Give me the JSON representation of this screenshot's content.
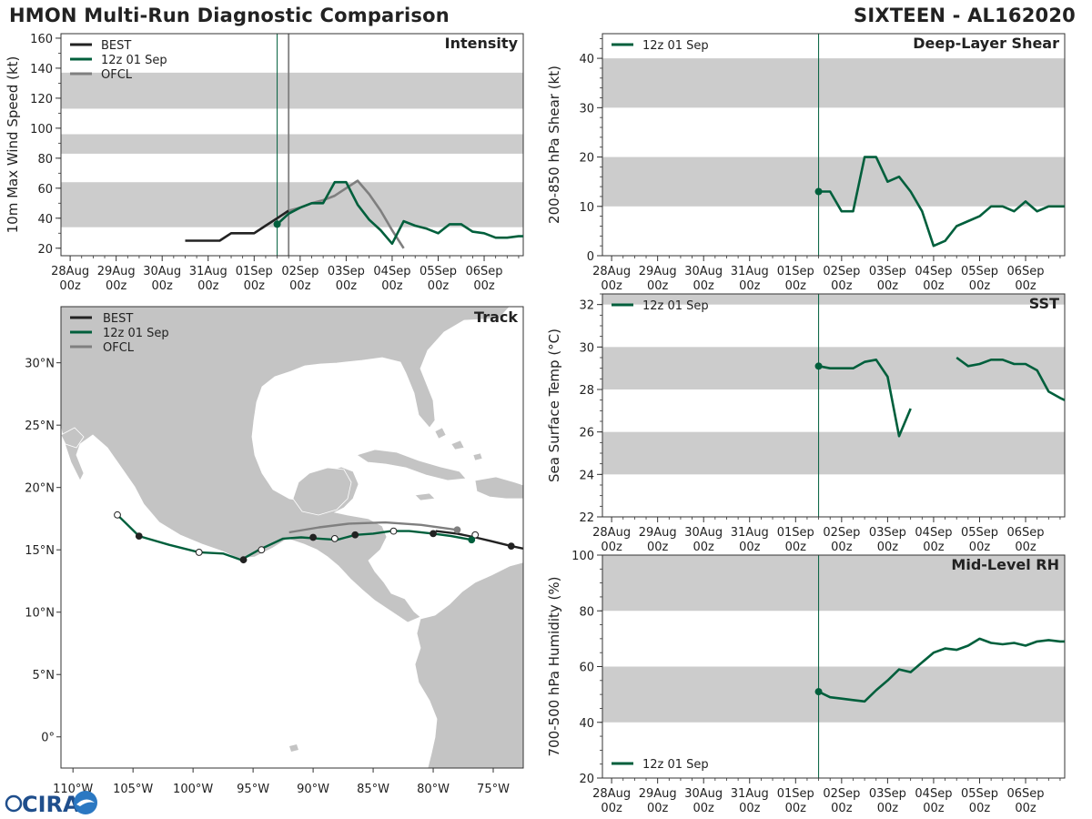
{
  "header": {
    "title": "HMON Multi-Run Diagnostic Comparison",
    "storm": "SIXTEEN - AL162020"
  },
  "logo": {
    "text": "CIRA"
  },
  "colors": {
    "best": "#222222",
    "run": "#005f3c",
    "ofcl": "#7f7f7f",
    "band": "#cccccc",
    "land": "#c4c4c4"
  },
  "time_axis": {
    "ticks": [
      {
        "day": 0,
        "label1": "28Aug",
        "label2": "00z"
      },
      {
        "day": 1,
        "label1": "29Aug",
        "label2": "00z"
      },
      {
        "day": 2,
        "label1": "30Aug",
        "label2": "00z"
      },
      {
        "day": 3,
        "label1": "31Aug",
        "label2": "00z"
      },
      {
        "day": 4,
        "label1": "01Sep",
        "label2": "00z"
      },
      {
        "day": 5,
        "label1": "02Sep",
        "label2": "00z"
      },
      {
        "day": 6,
        "label1": "03Sep",
        "label2": "00z"
      },
      {
        "day": 7,
        "label1": "04Sep",
        "label2": "00z"
      },
      {
        "day": 8,
        "label1": "05Sep",
        "label2": "00z"
      },
      {
        "day": 9,
        "label1": "06Sep",
        "label2": "00z"
      }
    ],
    "xlim": [
      -0.2,
      9.85
    ],
    "init_day": 4.5
  },
  "chart_data": [
    {
      "id": "intensity",
      "type": "line",
      "title": "Intensity",
      "ylabel": "10m Max Wind Speed (kt)",
      "ylim": [
        15,
        163
      ],
      "yticks": [
        20,
        40,
        60,
        80,
        100,
        120,
        140,
        160
      ],
      "minor_step": 10,
      "bands": [
        [
          34,
          64
        ],
        [
          83,
          96
        ],
        [
          113,
          137
        ]
      ],
      "vlines": [
        {
          "x": 4.5,
          "color": "run"
        },
        {
          "x": 4.75,
          "color": "ofcl"
        }
      ],
      "legend": [
        {
          "label": "BEST",
          "color": "best"
        },
        {
          "label": "12z 01 Sep",
          "color": "run"
        },
        {
          "label": "OFCL",
          "color": "ofcl"
        }
      ],
      "series": [
        {
          "name": "BEST",
          "color": "best",
          "x": [
            2.5,
            2.75,
            3.0,
            3.25,
            3.5,
            3.75,
            4.0,
            4.25,
            4.5,
            4.75
          ],
          "y": [
            25,
            25,
            25,
            25,
            30,
            30,
            30,
            35,
            40,
            45
          ]
        },
        {
          "name": "OFCL",
          "color": "ofcl",
          "x": [
            4.75,
            5.0,
            5.25,
            5.5,
            5.75,
            6.0,
            6.25,
            6.5,
            6.75,
            7.0,
            7.25
          ],
          "y": [
            45,
            47,
            50,
            52,
            55,
            60,
            65,
            56,
            45,
            32,
            20
          ]
        },
        {
          "name": "12z 01 Sep",
          "color": "run",
          "start_marker": true,
          "x": [
            4.5,
            4.75,
            5.0,
            5.25,
            5.5,
            5.75,
            6.0,
            6.25,
            6.5,
            6.75,
            7.0,
            7.25,
            7.5,
            7.75,
            8.0,
            8.25,
            8.5,
            8.75,
            9.0,
            9.25,
            9.5,
            9.75,
            9.85
          ],
          "y": [
            36,
            43,
            47,
            50,
            50,
            64,
            64,
            49,
            39,
            32,
            23,
            38,
            35,
            33,
            30,
            36,
            36,
            31,
            30,
            27,
            27,
            28,
            28
          ]
        }
      ]
    },
    {
      "id": "shear",
      "type": "line",
      "title": "Deep-Layer Shear",
      "ylabel": "200-850 hPa Shear (kt)",
      "ylim": [
        0,
        45
      ],
      "yticks": [
        0,
        10,
        20,
        30,
        40
      ],
      "minor_step": 2,
      "bands": [
        [
          10,
          20
        ],
        [
          30,
          40
        ]
      ],
      "vlines": [
        {
          "x": 4.5,
          "color": "run"
        }
      ],
      "legend": [
        {
          "label": "12z 01 Sep",
          "color": "run"
        }
      ],
      "series": [
        {
          "name": "12z 01 Sep",
          "color": "run",
          "start_marker": true,
          "x": [
            4.5,
            4.75,
            5.0,
            5.25,
            5.5,
            5.75,
            6.0,
            6.25,
            6.5,
            6.75,
            7.0,
            7.25,
            7.5,
            7.75,
            8.0,
            8.25,
            8.5,
            8.75,
            9.0,
            9.25,
            9.5,
            9.75,
            9.85
          ],
          "y": [
            13,
            13,
            9,
            9,
            20,
            20,
            15,
            16,
            13,
            9,
            2,
            3,
            6,
            7,
            8,
            10,
            10,
            9,
            11,
            9,
            10,
            10,
            10
          ]
        }
      ]
    },
    {
      "id": "sst",
      "type": "line",
      "title": "SST",
      "ylabel": "Sea Surface Temp (°C)",
      "ylim": [
        22,
        32.5
      ],
      "yticks": [
        22,
        24,
        26,
        28,
        30,
        32
      ],
      "minor_step": 0.5,
      "bands": [
        [
          24,
          26
        ],
        [
          28,
          30
        ],
        [
          32,
          34
        ]
      ],
      "vlines": [
        {
          "x": 4.5,
          "color": "run"
        }
      ],
      "legend": [
        {
          "label": "12z 01 Sep",
          "color": "run"
        }
      ],
      "series": [
        {
          "name": "12z 01 Sep",
          "color": "run",
          "start_marker": true,
          "x": [
            4.5,
            4.75,
            5.0,
            5.25,
            5.5,
            5.75,
            6.0,
            6.25,
            6.5
          ],
          "y": [
            29.1,
            29.0,
            29.0,
            29.0,
            29.3,
            29.4,
            28.6,
            25.8,
            27.1
          ]
        },
        {
          "name": "12z 01 Sep (cont.)",
          "color": "run",
          "x": [
            7.5,
            7.75,
            8.0,
            8.25,
            8.5,
            8.75,
            9.0,
            9.25,
            9.5,
            9.75,
            9.85
          ],
          "y": [
            29.5,
            29.1,
            29.2,
            29.4,
            29.4,
            29.2,
            29.2,
            28.9,
            27.9,
            27.6,
            27.5
          ]
        }
      ]
    },
    {
      "id": "rh",
      "type": "line",
      "title": "Mid-Level RH",
      "ylabel": "700-500 hPa Humidity (%)",
      "ylim": [
        20,
        100
      ],
      "yticks": [
        20,
        40,
        60,
        80,
        100
      ],
      "minor_step": 5,
      "bands": [
        [
          40,
          60
        ],
        [
          80,
          100
        ]
      ],
      "vlines": [
        {
          "x": 4.5,
          "color": "run"
        }
      ],
      "legend": [
        {
          "label": "12z 01 Sep",
          "color": "run"
        }
      ],
      "legend_pos": "bottom-left",
      "series": [
        {
          "name": "12z 01 Sep",
          "color": "run",
          "start_marker": true,
          "x": [
            4.5,
            4.75,
            5.0,
            5.25,
            5.5,
            5.75,
            6.0,
            6.25,
            6.5,
            6.75,
            7.0,
            7.25,
            7.5,
            7.75,
            8.0,
            8.25,
            8.5,
            8.75,
            9.0,
            9.25,
            9.5,
            9.75,
            9.85
          ],
          "y": [
            51,
            49,
            48.5,
            48,
            47.5,
            51.5,
            55,
            59,
            58,
            61.5,
            65,
            66.5,
            66,
            67.5,
            70,
            68.5,
            68,
            68.5,
            67.5,
            69,
            69.5,
            69,
            69
          ]
        }
      ]
    },
    {
      "id": "track",
      "type": "scatter",
      "title": "Track",
      "xlim": [
        -111,
        -72.5
      ],
      "ylim": [
        -2.5,
        34.5
      ],
      "xticks": [
        {
          "v": -110,
          "label": "110°W"
        },
        {
          "v": -105,
          "label": "105°W"
        },
        {
          "v": -100,
          "label": "100°W"
        },
        {
          "v": -95,
          "label": "95°W"
        },
        {
          "v": -90,
          "label": "90°W"
        },
        {
          "v": -85,
          "label": "85°W"
        },
        {
          "v": -80,
          "label": "80°W"
        },
        {
          "v": -75,
          "label": "75°W"
        }
      ],
      "yticks": [
        {
          "v": 0,
          "label": "0°"
        },
        {
          "v": 5,
          "label": "5°N"
        },
        {
          "v": 10,
          "label": "10°N"
        },
        {
          "v": 15,
          "label": "15°N"
        },
        {
          "v": 20,
          "label": "20°N"
        },
        {
          "v": 25,
          "label": "25°N"
        },
        {
          "v": 30,
          "label": "30°N"
        }
      ],
      "legend": [
        {
          "label": "BEST",
          "color": "best"
        },
        {
          "label": "12z 01 Sep",
          "color": "run"
        },
        {
          "label": "OFCL",
          "color": "ofcl"
        }
      ],
      "series": [
        {
          "name": "BEST",
          "color": "best",
          "lon": [
            -72.5,
            -73.5,
            -75.2,
            -76.5,
            -78.0,
            -79.8
          ],
          "lat": [
            15.1,
            15.3,
            15.7,
            16.0,
            16.3,
            16.5
          ],
          "markers": [
            {
              "lon": -73.5,
              "lat": 15.3,
              "fill": "dark"
            },
            {
              "lon": -76.5,
              "lat": 16.2,
              "fill": "open"
            }
          ]
        },
        {
          "name": "OFCL",
          "color": "ofcl",
          "lon": [
            -78.0,
            -81.0,
            -84.0,
            -87.0,
            -89.5,
            -92.0
          ],
          "lat": [
            16.6,
            17.0,
            17.2,
            17.1,
            16.8,
            16.4
          ],
          "markers": [
            {
              "lon": -78.0,
              "lat": 16.6,
              "fill": "ofcl"
            }
          ]
        },
        {
          "name": "12z 01 Sep",
          "color": "run",
          "lon": [
            -76.8,
            -78.5,
            -80.0,
            -82.0,
            -83.5,
            -85.0,
            -86.5,
            -88.0,
            -89.5,
            -91.0,
            -92.5,
            -94.5,
            -96.0,
            -97.5,
            -99.5,
            -102.0,
            -104.5,
            -106.3
          ],
          "lat": [
            15.8,
            16.1,
            16.3,
            16.5,
            16.5,
            16.3,
            16.2,
            15.8,
            15.9,
            16.0,
            15.9,
            15.0,
            14.2,
            14.7,
            14.8,
            15.4,
            16.1,
            17.8
          ],
          "markers": [
            {
              "lon": -76.8,
              "lat": 15.8,
              "fill": "run"
            },
            {
              "lon": -80.0,
              "lat": 16.3,
              "fill": "dark"
            },
            {
              "lon": -83.3,
              "lat": 16.5,
              "fill": "open"
            },
            {
              "lon": -86.5,
              "lat": 16.2,
              "fill": "dark"
            },
            {
              "lon": -88.2,
              "lat": 15.9,
              "fill": "open"
            },
            {
              "lon": -90.0,
              "lat": 16.0,
              "fill": "dark"
            },
            {
              "lon": -94.3,
              "lat": 15.0,
              "fill": "open"
            },
            {
              "lon": -95.8,
              "lat": 14.2,
              "fill": "dark"
            },
            {
              "lon": -99.5,
              "lat": 14.8,
              "fill": "open"
            },
            {
              "lon": -104.5,
              "lat": 16.1,
              "fill": "dark"
            },
            {
              "lon": -106.3,
              "lat": 17.8,
              "fill": "open"
            }
          ]
        }
      ]
    }
  ]
}
